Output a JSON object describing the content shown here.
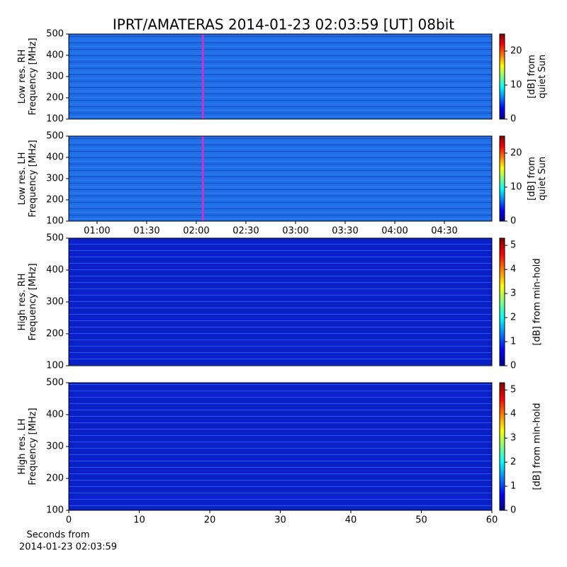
{
  "title": "IPRT/AMATERAS 2014-01-23 02:03:59 [UT]   08bit",
  "chart_data": [
    {
      "type": "heatmap",
      "ylabel": [
        "Low res. RH",
        "Frequency [MHz]"
      ],
      "ylim": [
        100,
        500
      ],
      "yticks": [
        100,
        200,
        300,
        400,
        500
      ],
      "xlim": [
        42.9,
        298.7
      ],
      "marker_x": 124,
      "marker_color": "#cc33cc",
      "colorbar_label": [
        "[dB] from",
        "quiet Sun"
      ],
      "clim": [
        0,
        25
      ],
      "cticks": [
        0,
        10,
        20
      ]
    },
    {
      "type": "heatmap",
      "ylabel": [
        "Low res. LH",
        "Frequency [MHz]"
      ],
      "ylim": [
        100,
        500
      ],
      "yticks": [
        100,
        200,
        300,
        400,
        500
      ],
      "xlim": [
        42.9,
        298.7
      ],
      "marker_x": 124,
      "marker_color": "#cc33cc",
      "xticks": [
        {
          "value": 60,
          "label": "01:00"
        },
        {
          "value": 90,
          "label": "01:30"
        },
        {
          "value": 120,
          "label": "02:00"
        },
        {
          "value": 150,
          "label": "02:30"
        },
        {
          "value": 180,
          "label": "03:00"
        },
        {
          "value": 210,
          "label": "03:30"
        },
        {
          "value": 240,
          "label": "04:00"
        },
        {
          "value": 270,
          "label": "04:30"
        }
      ],
      "colorbar_label": [
        "[dB] from",
        "quiet Sun"
      ],
      "clim": [
        0,
        25
      ],
      "cticks": [
        0,
        10,
        20
      ]
    },
    {
      "type": "heatmap",
      "ylabel": [
        "High res. RH",
        "Frequency [MHz]"
      ],
      "ylim": [
        100,
        500
      ],
      "yticks": [
        100,
        200,
        300,
        400,
        500
      ],
      "xlim": [
        0,
        60
      ],
      "colorbar_label": [
        "[dB] from min-hold"
      ],
      "clim": [
        0,
        5.3
      ],
      "cticks": [
        0,
        1,
        2,
        3,
        4,
        5
      ]
    },
    {
      "type": "heatmap",
      "ylabel": [
        "High res. LH",
        "Frequency [MHz]"
      ],
      "ylim": [
        100,
        500
      ],
      "yticks": [
        100,
        200,
        300,
        400,
        500
      ],
      "xlim": [
        0,
        60
      ],
      "xticks": [
        0,
        10,
        20,
        30,
        40,
        50,
        60
      ],
      "xlabel": [
        "Seconds from",
        "2014-01-23 02:03:59"
      ],
      "colorbar_label": [
        "[dB] from min-hold"
      ],
      "clim": [
        0,
        5.3
      ],
      "cticks": [
        0,
        1,
        2,
        3,
        4,
        5
      ]
    }
  ]
}
